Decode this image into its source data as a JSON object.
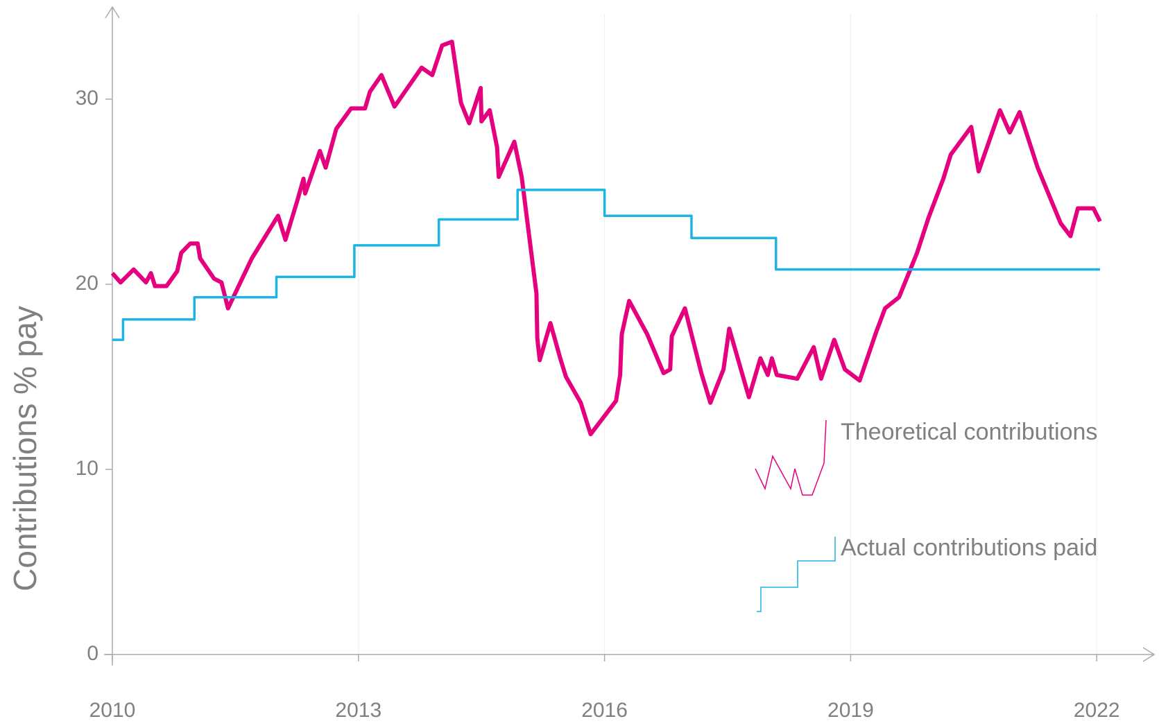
{
  "chart_data": {
    "type": "line",
    "y_label": "Contributions % pay",
    "xlim": [
      2010,
      2022.7
    ],
    "ylim": [
      0,
      35
    ],
    "xticks": [
      2010,
      2013,
      2016,
      2019,
      2022
    ],
    "yticks": [
      0,
      10,
      20,
      30
    ],
    "x_grid": true,
    "series": [
      {
        "name": "Theoretical contributions",
        "color": "#e5007d",
        "step": false,
        "x": [
          2010.0,
          2010.1,
          2010.26,
          2010.41,
          2010.47,
          2010.52,
          2010.66,
          2010.79,
          2010.84,
          2010.95,
          2011.04,
          2011.07,
          2011.24,
          2011.33,
          2011.41,
          2011.7,
          2012.02,
          2012.11,
          2012.26,
          2012.33,
          2012.35,
          2012.53,
          2012.6,
          2012.73,
          2012.91,
          2013.08,
          2013.14,
          2013.28,
          2013.44,
          2013.77,
          2013.9,
          2014.02,
          2014.14,
          2014.25,
          2014.35,
          2014.49,
          2014.5,
          2014.6,
          2014.69,
          2014.71,
          2014.9,
          2014.99,
          2015.17,
          2015.18,
          2015.21,
          2015.34,
          2015.46,
          2015.53,
          2015.62,
          2015.71,
          2015.83,
          2016.14,
          2016.19,
          2016.21,
          2016.3,
          2016.52,
          2016.72,
          2016.8,
          2016.82,
          2016.98,
          2017.18,
          2017.29,
          2017.45,
          2017.52,
          2017.76,
          2017.9,
          2017.99,
          2018.04,
          2018.1,
          2018.35,
          2018.55,
          2018.64,
          2018.8,
          2018.93,
          2019.11,
          2019.31,
          2019.42,
          2019.59,
          2019.81,
          2019.95,
          2020.13,
          2020.22,
          2020.47,
          2020.56,
          2020.82,
          2020.94,
          2021.06,
          2021.28,
          2021.56,
          2021.68,
          2021.77,
          2021.96,
          2022.04
        ],
        "values": [
          20.6,
          20.1,
          20.8,
          20.1,
          20.6,
          19.9,
          19.9,
          20.7,
          21.7,
          22.2,
          22.2,
          21.4,
          20.3,
          20.1,
          18.7,
          21.4,
          23.7,
          22.4,
          24.6,
          25.7,
          24.9,
          27.2,
          26.3,
          28.4,
          29.5,
          29.5,
          30.4,
          31.3,
          29.6,
          31.7,
          31.3,
          32.9,
          33.1,
          29.8,
          28.7,
          30.6,
          28.8,
          29.4,
          27.4,
          25.8,
          27.7,
          25.8,
          19.5,
          17.1,
          15.9,
          17.9,
          16.0,
          15.0,
          14.3,
          13.6,
          11.9,
          13.7,
          15.1,
          17.3,
          19.1,
          17.3,
          15.2,
          15.4,
          17.2,
          18.7,
          15.2,
          13.6,
          15.4,
          17.6,
          13.9,
          16.0,
          15.1,
          16.0,
          15.1,
          14.9,
          16.6,
          14.9,
          17.0,
          15.4,
          14.8,
          17.4,
          18.7,
          19.3,
          21.7,
          23.6,
          25.7,
          27.0,
          28.5,
          26.1,
          29.4,
          28.2,
          29.3,
          26.3,
          23.3,
          22.6,
          24.1,
          24.1,
          23.4
        ]
      },
      {
        "name": "Actual contributions paid",
        "color": "#1cb4e3",
        "step": true,
        "x": [
          2010.0,
          2010.13,
          2011.0,
          2012.0,
          2012.95,
          2013.98,
          2014.94,
          2016.0,
          2017.06,
          2018.09,
          2022.04
        ],
        "values": [
          17.0,
          18.1,
          19.3,
          20.4,
          22.1,
          23.5,
          25.1,
          23.7,
          22.5,
          20.8,
          20.8
        ]
      }
    ]
  }
}
